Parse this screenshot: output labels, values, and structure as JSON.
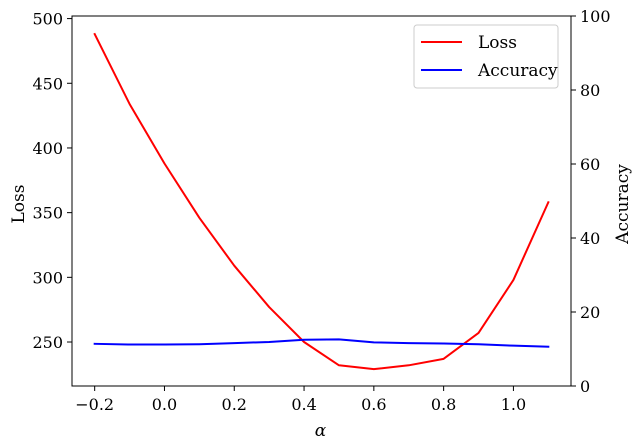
{
  "chart_data": {
    "type": "line",
    "x": [
      -0.2,
      -0.1,
      0.0,
      0.1,
      0.2,
      0.3,
      0.4,
      0.5,
      0.6,
      0.7,
      0.8,
      0.9,
      1.0,
      1.1
    ],
    "series": [
      {
        "name": "Loss",
        "axis": "left",
        "color": "#ff0000",
        "values": [
          488,
          434,
          388,
          346,
          309,
          277,
          250,
          232,
          229,
          232,
          237,
          257,
          298,
          358
        ]
      },
      {
        "name": "Accuracy",
        "axis": "right",
        "color": "#0000ff",
        "values": [
          11.4,
          11.2,
          11.2,
          11.3,
          11.6,
          11.9,
          12.5,
          12.6,
          11.8,
          11.6,
          11.5,
          11.3,
          10.9,
          10.6
        ]
      }
    ],
    "xlabel": "α",
    "ylabel_left": "Loss",
    "ylabel_right": "Accuracy",
    "xlim": [
      -0.265,
      1.165
    ],
    "ylim_left": [
      216,
      502
    ],
    "ylim_right": [
      0,
      100
    ],
    "xticks": [
      -0.2,
      0.0,
      0.2,
      0.4,
      0.6,
      0.8,
      1.0
    ],
    "xtick_labels": [
      "−0.2",
      "0.0",
      "0.2",
      "0.4",
      "0.6",
      "0.8",
      "1.0"
    ],
    "yticks_left": [
      250,
      300,
      350,
      400,
      450,
      500
    ],
    "yticks_right": [
      0,
      20,
      40,
      60,
      80,
      100
    ],
    "grid": false,
    "legend_position": "top-right"
  }
}
